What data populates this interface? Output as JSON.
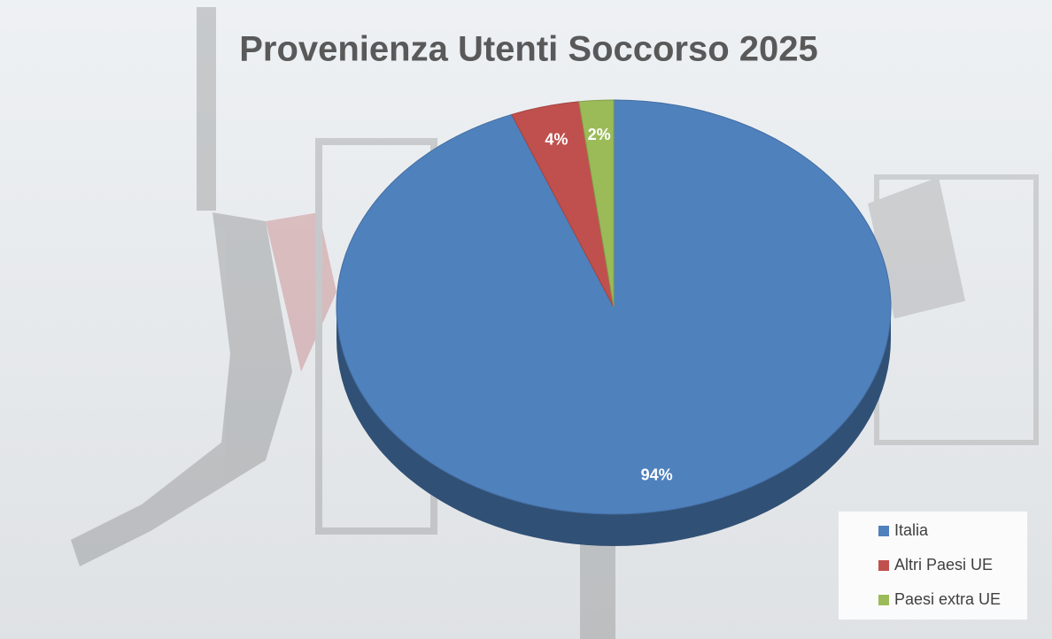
{
  "chart_data": {
    "type": "pie",
    "title": "Provenienza Utenti  Soccorso 2025",
    "categories": [
      "Italia",
      "Altri Paesi UE",
      "Paesi extra UE"
    ],
    "values": [
      94,
      4,
      2
    ],
    "value_labels": [
      "94%",
      "4%",
      "2%"
    ],
    "colors": [
      "#4f81bd",
      "#c0504d",
      "#9bbb59"
    ],
    "legend": "bottom-right"
  }
}
